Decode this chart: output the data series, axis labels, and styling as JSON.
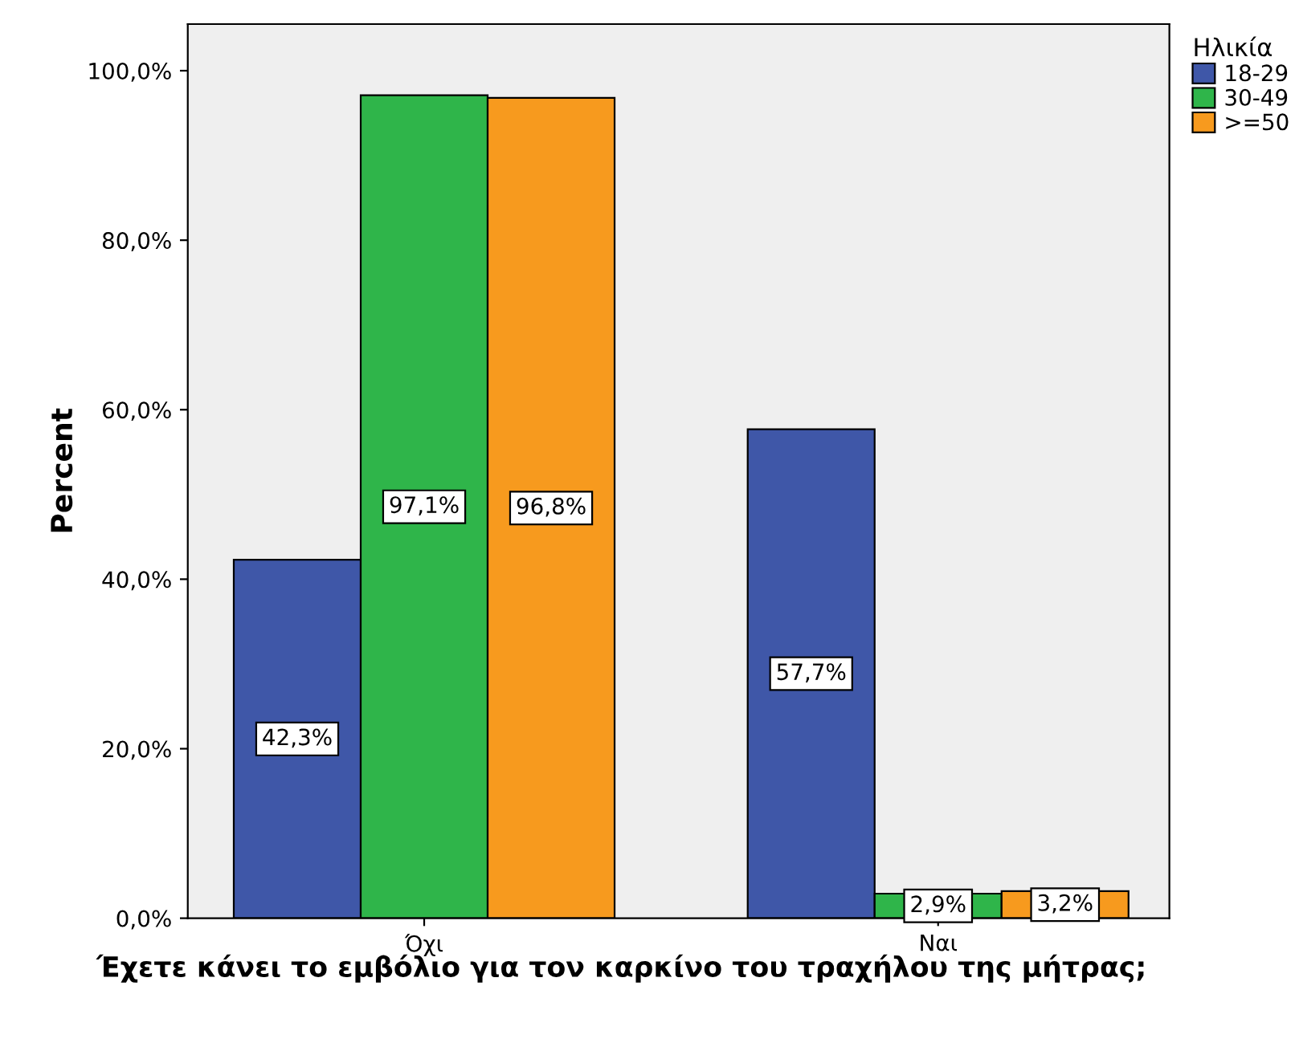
{
  "chart_data": {
    "type": "bar",
    "categories": [
      "Όχι",
      "Ναι"
    ],
    "series": [
      {
        "name": "18-29",
        "color": "#3f57a8",
        "values": [
          42.3,
          57.7
        ],
        "value_labels": [
          "42,3%",
          "57,7%"
        ]
      },
      {
        "name": "30-49",
        "color": "#2fb54a",
        "values": [
          97.1,
          2.9
        ],
        "value_labels": [
          "97,1%",
          "2,9%"
        ]
      },
      {
        "name": ">=50",
        "color": "#f79a1e",
        "values": [
          96.8,
          3.2
        ],
        "value_labels": [
          "96,8%",
          "3,2%"
        ]
      }
    ],
    "xlabel": "Έχετε κάνει το εμβόλιο για τον καρκίνο του τραχήλου της μήτρας;",
    "ylabel": "Percent",
    "legend_title": "Ηλικία",
    "legend": "top right",
    "ylim": [
      0,
      105.5
    ],
    "yticks": [
      {
        "value": 0,
        "label": "0,0%"
      },
      {
        "value": 20,
        "label": "20,0%"
      },
      {
        "value": 40,
        "label": "40,0%"
      },
      {
        "value": 60,
        "label": "60,0%"
      },
      {
        "value": 80,
        "label": "80,0%"
      },
      {
        "value": 100,
        "label": "100,0%"
      }
    ],
    "grid": false
  }
}
